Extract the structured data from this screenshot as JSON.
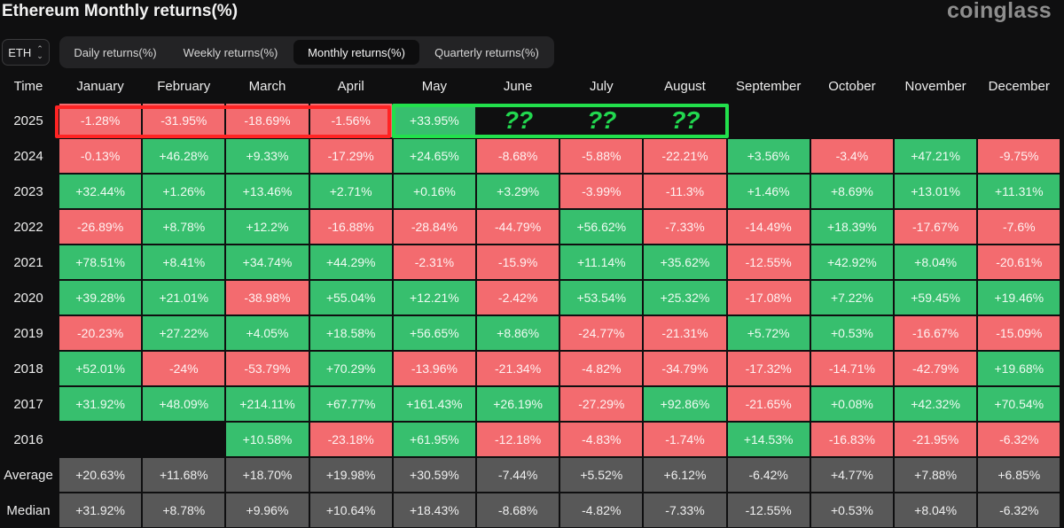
{
  "header": {
    "title": "Ethereum Monthly returns(%)",
    "brand": "coinglass",
    "coin_select": "ETH",
    "tabs": [
      "Daily returns(%)",
      "Weekly returns(%)",
      "Monthly returns(%)",
      "Quarterly returns(%)"
    ],
    "active_tab": "Monthly returns(%)"
  },
  "chart_data": {
    "type": "table",
    "title": "Ethereum Monthly returns(%)",
    "corner_label": "Time",
    "columns": [
      "January",
      "February",
      "March",
      "April",
      "May",
      "June",
      "July",
      "August",
      "September",
      "October",
      "November",
      "December"
    ],
    "rows": [
      {
        "label": "2025",
        "kind": "year",
        "values": [
          "-1.28%",
          "-31.95%",
          "-18.69%",
          "-1.56%",
          "+33.95%",
          "??",
          "??",
          "??",
          "",
          "",
          "",
          ""
        ]
      },
      {
        "label": "2024",
        "kind": "year",
        "values": [
          "-0.13%",
          "+46.28%",
          "+9.33%",
          "-17.29%",
          "+24.65%",
          "-8.68%",
          "-5.88%",
          "-22.21%",
          "+3.56%",
          "-3.4%",
          "+47.21%",
          "-9.75%"
        ]
      },
      {
        "label": "2023",
        "kind": "year",
        "values": [
          "+32.44%",
          "+1.26%",
          "+13.46%",
          "+2.71%",
          "+0.16%",
          "+3.29%",
          "-3.99%",
          "-11.3%",
          "+1.46%",
          "+8.69%",
          "+13.01%",
          "+11.31%"
        ]
      },
      {
        "label": "2022",
        "kind": "year",
        "values": [
          "-26.89%",
          "+8.78%",
          "+12.2%",
          "-16.88%",
          "-28.84%",
          "-44.79%",
          "+56.62%",
          "-7.33%",
          "-14.49%",
          "+18.39%",
          "-17.67%",
          "-7.6%"
        ]
      },
      {
        "label": "2021",
        "kind": "year",
        "values": [
          "+78.51%",
          "+8.41%",
          "+34.74%",
          "+44.29%",
          "-2.31%",
          "-15.9%",
          "+11.14%",
          "+35.62%",
          "-12.55%",
          "+42.92%",
          "+8.04%",
          "-20.61%"
        ]
      },
      {
        "label": "2020",
        "kind": "year",
        "values": [
          "+39.28%",
          "+21.01%",
          "-38.98%",
          "+55.04%",
          "+12.21%",
          "-2.42%",
          "+53.54%",
          "+25.32%",
          "-17.08%",
          "+7.22%",
          "+59.45%",
          "+19.46%"
        ]
      },
      {
        "label": "2019",
        "kind": "year",
        "values": [
          "-20.23%",
          "+27.22%",
          "+4.05%",
          "+18.58%",
          "+56.65%",
          "+8.86%",
          "-24.77%",
          "-21.31%",
          "+5.72%",
          "+0.53%",
          "-16.67%",
          "-15.09%"
        ]
      },
      {
        "label": "2018",
        "kind": "year",
        "values": [
          "+52.01%",
          "-24%",
          "-53.79%",
          "+70.29%",
          "-13.96%",
          "-21.34%",
          "-4.82%",
          "-34.79%",
          "-17.32%",
          "-14.71%",
          "-42.79%",
          "+19.68%"
        ]
      },
      {
        "label": "2017",
        "kind": "year",
        "values": [
          "+31.92%",
          "+48.09%",
          "+214.11%",
          "+67.77%",
          "+161.43%",
          "+26.19%",
          "-27.29%",
          "+92.86%",
          "-21.65%",
          "+0.08%",
          "+42.32%",
          "+70.54%"
        ]
      },
      {
        "label": "2016",
        "kind": "year",
        "values": [
          "",
          "",
          "+10.58%",
          "-23.18%",
          "+61.95%",
          "-12.18%",
          "-4.83%",
          "-1.74%",
          "+14.53%",
          "-16.83%",
          "-21.95%",
          "-6.32%"
        ]
      },
      {
        "label": "Average",
        "kind": "summary",
        "values": [
          "+20.63%",
          "+11.68%",
          "+18.70%",
          "+19.98%",
          "+30.59%",
          "-7.44%",
          "+5.52%",
          "+6.12%",
          "-6.42%",
          "+4.77%",
          "+7.88%",
          "+6.85%"
        ]
      },
      {
        "label": "Median",
        "kind": "summary",
        "values": [
          "+31.92%",
          "+8.78%",
          "+9.96%",
          "+10.64%",
          "+18.43%",
          "-8.68%",
          "-4.82%",
          "-7.33%",
          "-12.55%",
          "+0.53%",
          "+8.04%",
          "-6.32%"
        ]
      }
    ],
    "colors": {
      "positive": "#37bf6e",
      "negative": "#f36b6f",
      "summary": "#585858",
      "highlight_red": "#ff2424",
      "highlight_green": "#22e04c",
      "question_marks": "#22d84f"
    },
    "highlights": [
      {
        "row": "2025",
        "from": "January",
        "to": "April",
        "color": "red"
      },
      {
        "row": "2025",
        "from": "May",
        "to": "August",
        "color": "green"
      }
    ]
  }
}
